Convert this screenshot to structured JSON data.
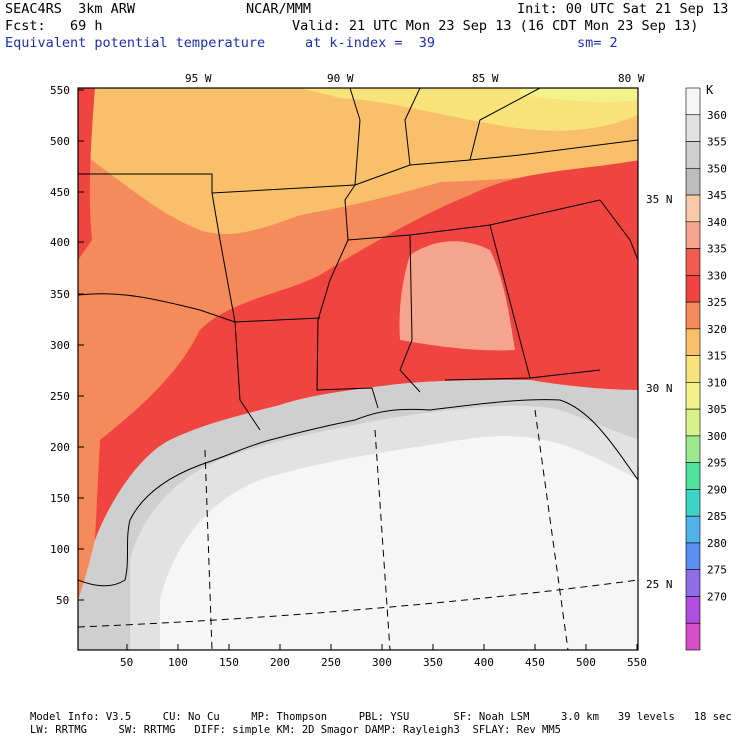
{
  "header": {
    "model": "SEAC4RS  3km ARW",
    "org": "NCAR/MMM",
    "init": "Init: 00 UTC Sat 21 Sep 13",
    "fcst": "Fcst:   69 h",
    "valid": "Valid: 21 UTC Mon 23 Sep 13 (16 CDT Mon 23 Sep 13)",
    "field": "Equivalent potential temperature",
    "level": "at k-index =  39",
    "smooth": "sm= 2"
  },
  "map": {
    "lon_labels": [
      "95 W",
      "90 W",
      "85 W",
      "80 W"
    ],
    "lat_labels": [
      "35 N",
      "30 N",
      "25 N"
    ],
    "x_ticks": [
      "50",
      "100",
      "150",
      "200",
      "250",
      "300",
      "350",
      "400",
      "450",
      "500",
      "550"
    ],
    "y_ticks": [
      "550",
      "500",
      "450",
      "400",
      "350",
      "300",
      "250",
      "200",
      "150",
      "100",
      "50"
    ]
  },
  "colorbar": {
    "unit": "K",
    "levels": [
      {
        "label": "360",
        "color": "#f6f6f6"
      },
      {
        "label": "355",
        "color": "#e2e2e2"
      },
      {
        "label": "350",
        "color": "#cfcfcf"
      },
      {
        "label": "345",
        "color": "#bdbdbd"
      },
      {
        "label": "340",
        "color": "#f9c9a8"
      },
      {
        "label": "335",
        "color": "#f5a58e"
      },
      {
        "label": "330",
        "color": "#f25c4f"
      },
      {
        "label": "325",
        "color": "#f04440"
      },
      {
        "label": "320",
        "color": "#f58a5a"
      },
      {
        "label": "315",
        "color": "#f9c06c"
      },
      {
        "label": "310",
        "color": "#f8e27a"
      },
      {
        "label": "305",
        "color": "#f4f28a"
      },
      {
        "label": "300",
        "color": "#d8f28a"
      },
      {
        "label": "295",
        "color": "#9be88e"
      },
      {
        "label": "290",
        "color": "#52e2a0"
      },
      {
        "label": "285",
        "color": "#3fd3c8"
      },
      {
        "label": "280",
        "color": "#4fb5e8"
      },
      {
        "label": "275",
        "color": "#5a8ef0"
      },
      {
        "label": "270",
        "color": "#8f6fe8"
      },
      {
        "label": "",
        "color": "#b04ee0"
      },
      {
        "label": "",
        "color": "#d64fc8"
      }
    ]
  },
  "footer": {
    "line1": "Model Info: V3.5     CU: No Cu     MP: Thompson     PBL: YSU       SF: Noah LSM     3.0 km   39 levels   18 sec",
    "line2": "LW: RRTMG     SW: RRTMG   DIFF: simple KM: 2D Smagor DAMP: Rayleigh3  SFLAY: Rev MM5"
  }
}
